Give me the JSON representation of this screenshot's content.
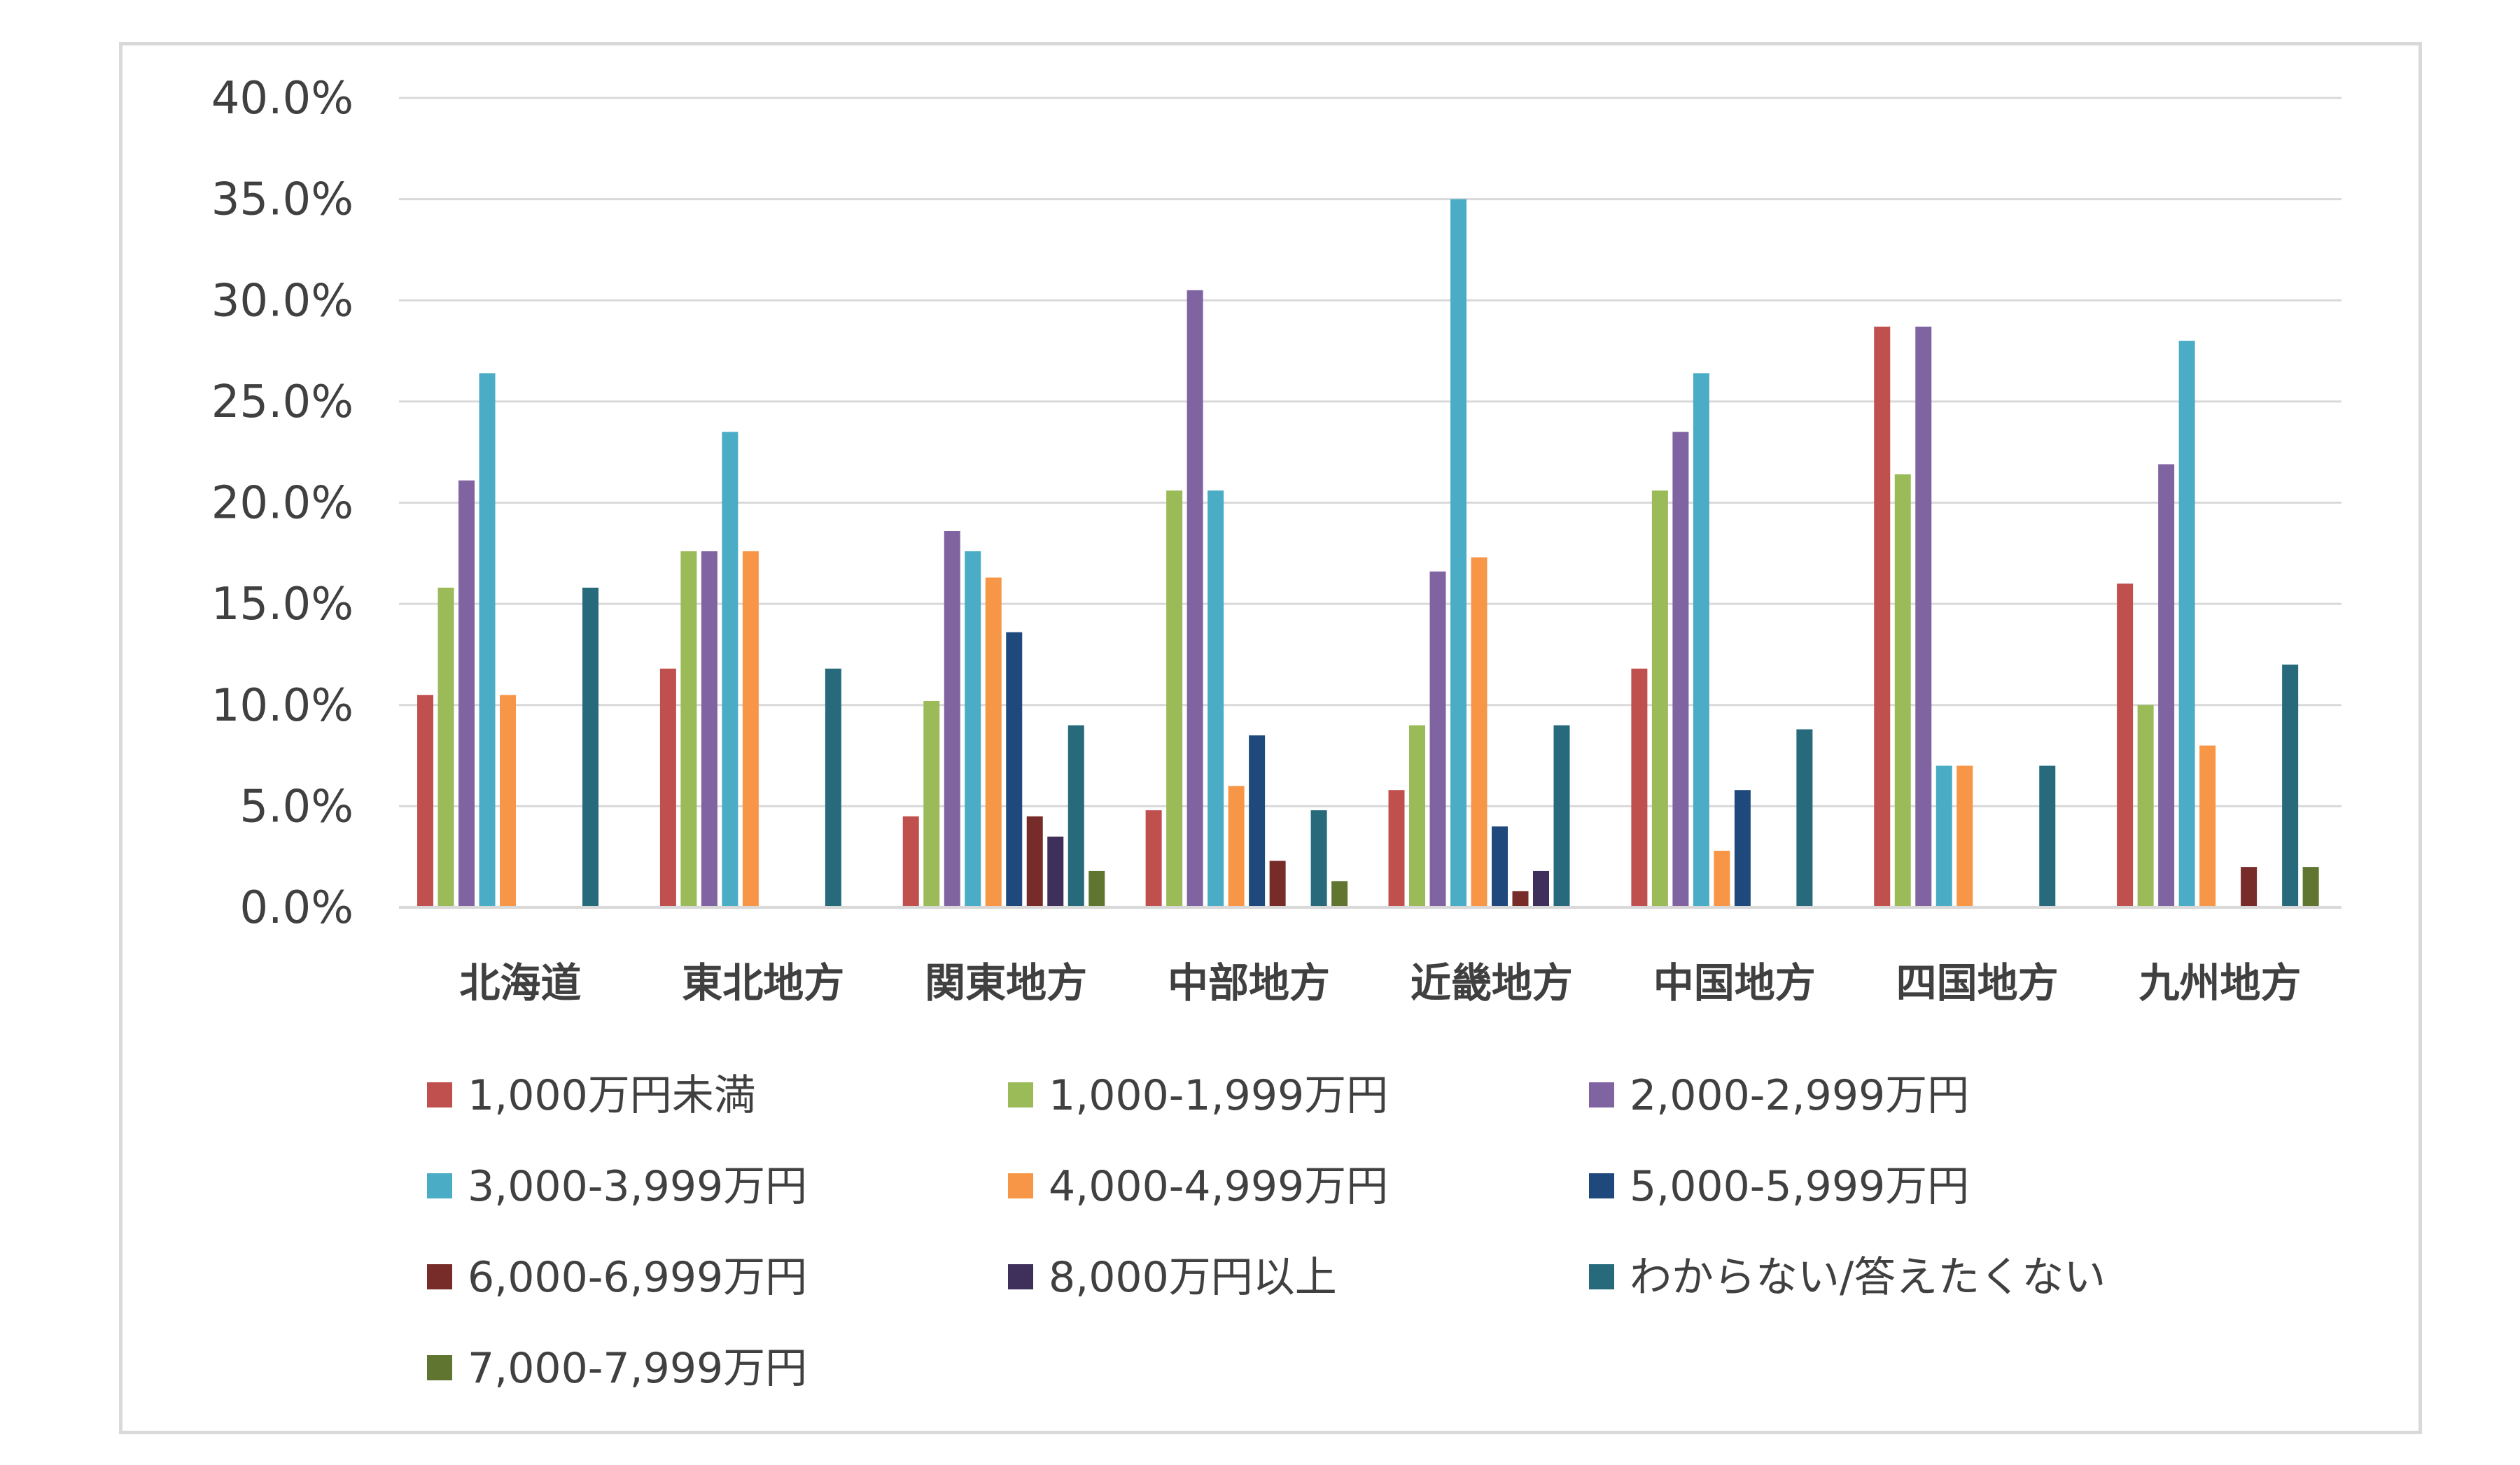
{
  "chart_data": {
    "type": "bar",
    "title": "",
    "xlabel": "",
    "ylabel": "",
    "ylim": [
      0,
      40
    ],
    "y_ticks": [
      "0.0%",
      "5.0%",
      "10.0%",
      "15.0%",
      "20.0%",
      "25.0%",
      "30.0%",
      "35.0%",
      "40.0%"
    ],
    "grid": true,
    "legend_position": "bottom",
    "categories": [
      "北海道",
      "東北地方",
      "関東地方",
      "中部地方",
      "近畿地方",
      "中国地方",
      "四国地方",
      "九州地方"
    ],
    "series": [
      {
        "name": "1,000万円未満",
        "color": "#c0504d",
        "values": [
          10.5,
          11.8,
          4.5,
          4.8,
          5.8,
          11.8,
          28.7,
          16.0
        ]
      },
      {
        "name": "1,000-1,999万円",
        "color": "#9bbb59",
        "values": [
          15.8,
          17.6,
          10.2,
          20.6,
          9.0,
          20.6,
          21.4,
          10.0
        ]
      },
      {
        "name": "2,000-2,999万円",
        "color": "#8064a2",
        "values": [
          21.1,
          17.6,
          18.6,
          30.5,
          16.6,
          23.5,
          28.7,
          21.9
        ]
      },
      {
        "name": "3,000-3,999万円",
        "color": "#4bacc6",
        "values": [
          26.4,
          23.5,
          17.6,
          20.6,
          35.0,
          26.4,
          7.0,
          28.0
        ]
      },
      {
        "name": "4,000-4,999万円",
        "color": "#f79646",
        "values": [
          10.5,
          17.6,
          16.3,
          6.0,
          17.3,
          2.8,
          7.0,
          8.0
        ]
      },
      {
        "name": "5,000-5,999万円",
        "color": "#1f497d",
        "values": [
          0,
          0,
          13.6,
          8.5,
          4.0,
          5.8,
          0,
          0
        ]
      },
      {
        "name": "6,000-6,999万円",
        "color": "#772c2a",
        "values": [
          0,
          0,
          4.5,
          2.3,
          0.8,
          0,
          0,
          2.0
        ]
      },
      {
        "name": "8,000万円以上",
        "color": "#3e2f5b",
        "values": [
          0,
          0,
          3.5,
          0,
          1.8,
          0,
          0,
          0
        ]
      },
      {
        "name": "わからない/答えたくない",
        "color": "#276a7c",
        "values": [
          15.8,
          11.8,
          9.0,
          4.8,
          9.0,
          8.8,
          7.0,
          12.0
        ]
      },
      {
        "name": "7,000-7,999万円",
        "color": "#5f7530",
        "values": [
          0,
          0,
          1.8,
          1.3,
          0,
          0,
          0,
          2.0
        ]
      }
    ]
  }
}
